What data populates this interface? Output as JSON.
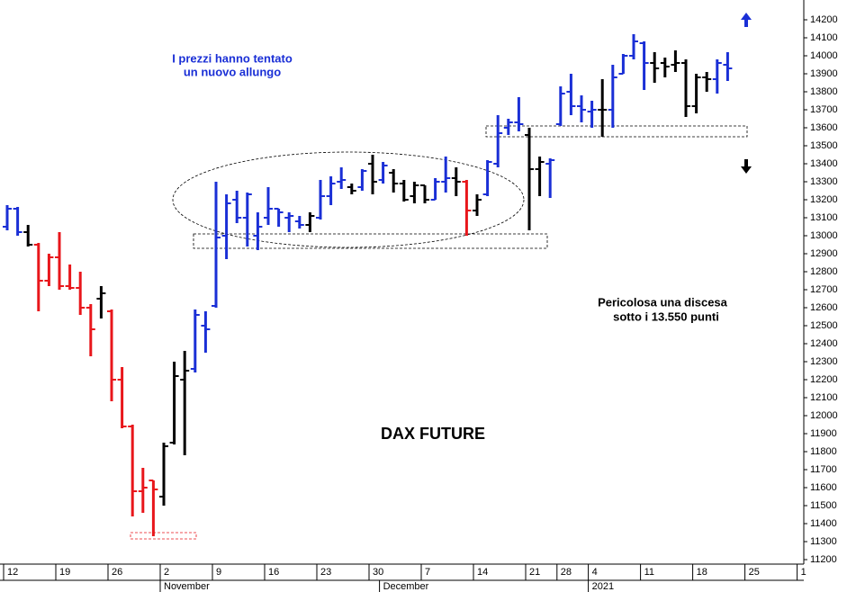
{
  "chart_data": {
    "type": "ohlc",
    "title": "DAX FUTURE",
    "annotations": [
      [
        "I prezzi hanno tentato",
        "un nuovo allungo"
      ],
      [
        "Pericolosa una discesa",
        "sotto i 13.550 punti"
      ]
    ],
    "categories": [
      "12",
      null,
      null,
      null,
      null,
      "19",
      null,
      null,
      null,
      null,
      "26",
      null,
      null,
      null,
      null,
      "2",
      null,
      null,
      null,
      null,
      "9",
      null,
      null,
      null,
      null,
      "16",
      null,
      null,
      null,
      null,
      "23",
      null,
      null,
      null,
      null,
      "30",
      null,
      null,
      null,
      null,
      "7",
      null,
      null,
      null,
      null,
      "14",
      null,
      null,
      null,
      null,
      "21",
      null,
      null,
      "28",
      null,
      null,
      "4",
      null,
      null,
      null,
      null,
      "11",
      null,
      null,
      null,
      null,
      "18",
      null,
      null,
      null,
      null,
      "25",
      null,
      null,
      null,
      null,
      "1"
    ],
    "months": [
      null,
      null,
      null,
      null,
      null,
      null,
      null,
      null,
      null,
      null,
      null,
      null,
      null,
      null,
      null,
      "November",
      null,
      null,
      null,
      null,
      null,
      null,
      null,
      null,
      null,
      null,
      null,
      null,
      null,
      null,
      null,
      null,
      null,
      null,
      null,
      null,
      "December",
      null,
      null,
      null,
      null,
      null,
      null,
      null,
      null,
      null,
      null,
      null,
      null,
      null,
      null,
      null,
      null,
      null,
      null,
      null,
      "2021",
      null,
      null,
      null,
      null,
      null,
      null,
      null,
      null,
      null,
      null,
      null,
      null,
      null,
      null,
      null,
      null,
      null,
      null,
      null,
      null
    ],
    "open": [
      13050,
      13150,
      13020,
      12950,
      12750,
      12880,
      12720,
      12710,
      12600,
      12650,
      12580,
      12200,
      11940,
      11580,
      11640,
      11550,
      11850,
      12200,
      12260,
      12500,
      12610,
      13000,
      13200,
      13100,
      13000,
      13100,
      13150,
      13100,
      13080,
      13060,
      13100,
      13220,
      13300,
      13270,
      13270,
      13400,
      13310,
      13350,
      13290,
      13220,
      13280,
      13200,
      13300,
      13320,
      13300,
      13140,
      13230,
      13400,
      13600,
      13630,
      13560,
      13370,
      13400,
      13620,
      13800,
      13720,
      13690,
      13700,
      13700,
      13900,
      14000,
      14070,
      13960,
      13960,
      13950,
      13960,
      13720,
      13880,
      13870,
      13950,
      null,
      null,
      null,
      null,
      null,
      null,
      null
    ],
    "high": [
      13170,
      13160,
      13060,
      12960,
      12900,
      13020,
      12840,
      12800,
      12620,
      12720,
      12590,
      12270,
      11950,
      11710,
      11640,
      11850,
      12300,
      12360,
      12590,
      12580,
      13300,
      13230,
      13250,
      13240,
      13130,
      13270,
      13150,
      13130,
      13110,
      13130,
      13310,
      13330,
      13380,
      13290,
      13370,
      13450,
      13410,
      13370,
      13310,
      13300,
      13280,
      13320,
      13440,
      13380,
      13310,
      13230,
      13420,
      13670,
      13650,
      13770,
      13600,
      13440,
      13430,
      13830,
      13900,
      13780,
      13750,
      13870,
      13950,
      14010,
      14120,
      14080,
      14020,
      13990,
      14030,
      13980,
      13900,
      13910,
      13980,
      14020,
      null,
      null,
      null,
      null,
      null,
      null,
      null
    ],
    "low": [
      13030,
      13000,
      12940,
      12580,
      12720,
      12700,
      12700,
      12560,
      12330,
      12540,
      12080,
      11930,
      11440,
      11460,
      11330,
      11500,
      11840,
      11780,
      12240,
      12350,
      12600,
      12870,
      13070,
      12940,
      12920,
      13060,
      13050,
      13020,
      13040,
      13020,
      13090,
      13170,
      13260,
      13230,
      13250,
      13230,
      13290,
      13240,
      13190,
      13180,
      13180,
      13200,
      13240,
      13220,
      13000,
      13110,
      13220,
      13380,
      13560,
      13580,
      13030,
      13220,
      13210,
      13610,
      13670,
      13630,
      13600,
      13550,
      13600,
      13900,
      13980,
      13810,
      13850,
      13880,
      13910,
      13660,
      13680,
      13800,
      13790,
      13860,
      null,
      null,
      null,
      null,
      null,
      null,
      null
    ],
    "close": [
      13150,
      13020,
      12950,
      12750,
      12880,
      12720,
      12710,
      12600,
      12480,
      12680,
      12200,
      11940,
      11580,
      11600,
      11590,
      11830,
      12220,
      12250,
      12560,
      12480,
      12990,
      13180,
      13100,
      13230,
      13050,
      13150,
      13130,
      13110,
      13060,
      13110,
      13220,
      13290,
      13310,
      13250,
      13360,
      13300,
      13390,
      13290,
      13200,
      13280,
      13200,
      13300,
      13320,
      13300,
      13140,
      13200,
      13410,
      13570,
      13630,
      13620,
      13370,
      13410,
      13420,
      13790,
      13720,
      13700,
      13700,
      13700,
      13880,
      14000,
      14080,
      13960,
      13930,
      13940,
      13960,
      13720,
      13880,
      13870,
      13960,
      13930,
      null,
      null,
      null,
      null,
      null,
      null,
      null
    ],
    "colors": [
      "#1a2fd6",
      "#1a2fd6",
      "#000000",
      "#e8161b",
      "#e8161b",
      "#e8161b",
      "#e8161b",
      "#e8161b",
      "#e8161b",
      "#000000",
      "#e8161b",
      "#e8161b",
      "#e8161b",
      "#e8161b",
      "#e8161b",
      "#000000",
      "#000000",
      "#000000",
      "#1a2fd6",
      "#1a2fd6",
      "#1a2fd6",
      "#1a2fd6",
      "#1a2fd6",
      "#1a2fd6",
      "#1a2fd6",
      "#1a2fd6",
      "#1a2fd6",
      "#1a2fd6",
      "#1a2fd6",
      "#000000",
      "#1a2fd6",
      "#1a2fd6",
      "#1a2fd6",
      "#000000",
      "#1a2fd6",
      "#000000",
      "#1a2fd6",
      "#000000",
      "#000000",
      "#000000",
      "#000000",
      "#1a2fd6",
      "#1a2fd6",
      "#000000",
      "#e8161b",
      "#000000",
      "#1a2fd6",
      "#1a2fd6",
      "#1a2fd6",
      "#1a2fd6",
      "#000000",
      "#000000",
      "#1a2fd6",
      "#1a2fd6",
      "#1a2fd6",
      "#1a2fd6",
      "#1a2fd6",
      "#000000",
      "#1a2fd6",
      "#1a2fd6",
      "#1a2fd6",
      "#1a2fd6",
      "#000000",
      "#000000",
      "#000000",
      "#000000",
      "#000000",
      "#000000",
      "#1a2fd6",
      "#1a2fd6",
      null,
      null,
      null,
      null,
      null,
      null,
      null
    ],
    "ylim": [
      11200,
      14200
    ],
    "yticks": [
      11200,
      11300,
      11400,
      11500,
      11600,
      11700,
      11800,
      11900,
      12000,
      12100,
      12200,
      12300,
      12400,
      12500,
      12600,
      12700,
      12800,
      12900,
      13000,
      13100,
      13200,
      13300,
      13400,
      13500,
      13600,
      13700,
      13800,
      13900,
      14000,
      14100,
      14200
    ]
  }
}
